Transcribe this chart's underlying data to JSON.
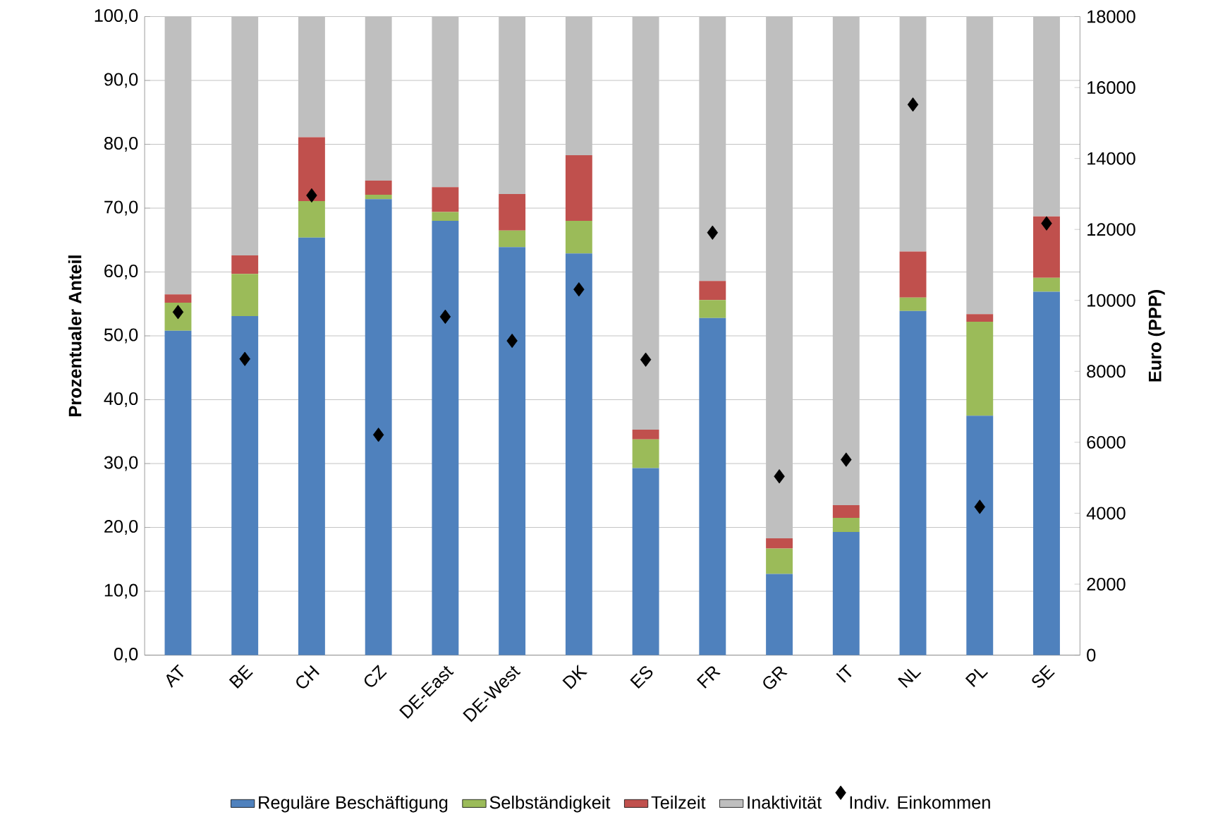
{
  "chart_data": {
    "type": "bar",
    "stacked": true,
    "ylabel": "Prozentualer Anteil",
    "y2label": "Euro (PPP)",
    "categories": [
      "AT",
      "BE",
      "CH",
      "CZ",
      "DE-East",
      "DE-West",
      "DK",
      "ES",
      "FR",
      "GR",
      "IT",
      "NL",
      "PL",
      "SE"
    ],
    "series": [
      {
        "name": "Reguläre Beschäftigung",
        "color": "#4f81bd",
        "values": [
          50.8,
          53.1,
          65.4,
          71.4,
          68.0,
          63.9,
          62.9,
          29.3,
          52.8,
          12.7,
          19.3,
          53.9,
          37.5,
          56.9
        ]
      },
      {
        "name": "Selbständigkeit",
        "color": "#9bbb59",
        "values": [
          4.4,
          6.6,
          5.7,
          0.7,
          1.4,
          2.6,
          5.1,
          4.5,
          2.8,
          4.0,
          2.2,
          2.1,
          14.7,
          2.2
        ]
      },
      {
        "name": "Teilzeit",
        "color": "#c0504d",
        "values": [
          1.3,
          2.9,
          10.0,
          2.2,
          3.9,
          5.7,
          10.3,
          1.5,
          3.0,
          1.6,
          2.0,
          7.2,
          1.2,
          9.6
        ]
      },
      {
        "name": "Inaktivität",
        "color": "#bfbfbf",
        "values": [
          43.5,
          37.4,
          18.9,
          25.7,
          26.7,
          27.8,
          21.7,
          64.7,
          41.4,
          81.7,
          76.5,
          36.8,
          46.6,
          31.3
        ]
      },
      {
        "name": "Indiv. Einkommen",
        "type": "scatter",
        "axis": "y2",
        "marker": "diamond",
        "color": "#000000",
        "values": [
          9670,
          8350,
          12960,
          6210,
          9540,
          8860,
          10310,
          8330,
          11910,
          5040,
          5510,
          15520,
          4180,
          12170
        ]
      }
    ],
    "ylim": [
      0,
      100
    ],
    "yticks": [
      {
        "value": 0,
        "label": "0,0"
      },
      {
        "value": 10,
        "label": "10,0"
      },
      {
        "value": 20,
        "label": "20,0"
      },
      {
        "value": 30,
        "label": "30,0"
      },
      {
        "value": 40,
        "label": "40,0"
      },
      {
        "value": 50,
        "label": "50,0"
      },
      {
        "value": 60,
        "label": "60,0"
      },
      {
        "value": 70,
        "label": "70,0"
      },
      {
        "value": 80,
        "label": "80,0"
      },
      {
        "value": 90,
        "label": "90,0"
      },
      {
        "value": 100,
        "label": "100,0"
      }
    ],
    "y2lim": [
      0,
      18000
    ],
    "y2ticks": [
      0,
      2000,
      4000,
      6000,
      8000,
      10000,
      12000,
      14000,
      16000,
      18000
    ],
    "grid": "y",
    "legend": "bottom"
  }
}
